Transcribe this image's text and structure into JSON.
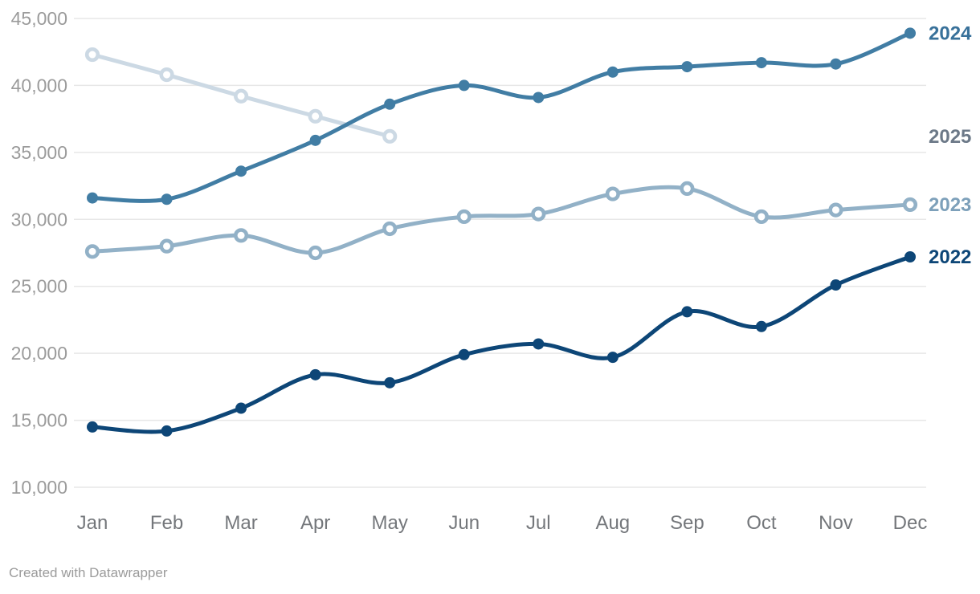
{
  "footer": {
    "credit": "Created with Datawrapper"
  },
  "chart_data": {
    "type": "line",
    "title": "",
    "xlabel": "",
    "ylabel": "",
    "categories": [
      "Jan",
      "Feb",
      "Mar",
      "Apr",
      "May",
      "Jun",
      "Jul",
      "Aug",
      "Sep",
      "Oct",
      "Nov",
      "Dec"
    ],
    "series": [
      {
        "name": "2022",
        "color": "#0d4677",
        "label_color": "#0d4677",
        "marker": "filled",
        "values": [
          14500,
          14200,
          15900,
          18400,
          17800,
          19900,
          20700,
          19700,
          23100,
          22000,
          25100,
          27200
        ]
      },
      {
        "name": "2023",
        "color": "#92b1c7",
        "label_color": "#7da0ba",
        "marker": "open",
        "values": [
          27600,
          28000,
          28800,
          27500,
          29300,
          30200,
          30400,
          31900,
          32300,
          30200,
          30700,
          31100
        ]
      },
      {
        "name": "2024",
        "color": "#417da4",
        "label_color": "#38719a",
        "marker": "filled",
        "values": [
          31600,
          31500,
          33600,
          35900,
          38600,
          40000,
          39100,
          41000,
          41400,
          41700,
          41600,
          43900
        ]
      },
      {
        "name": "2025",
        "color": "#ccd9e4",
        "label_color": "#6c7988",
        "marker": "open",
        "values": [
          42300,
          40800,
          39200,
          37700,
          36200
        ]
      }
    ],
    "ylim": [
      10000,
      45000
    ],
    "ytick_step": 5000,
    "ytick_labels": [
      "10,000",
      "15,000",
      "20,000",
      "25,000",
      "30,000",
      "35,000",
      "40,000",
      "45,000"
    ],
    "grid": "horizontal",
    "legend_position": "right-end-labels"
  }
}
